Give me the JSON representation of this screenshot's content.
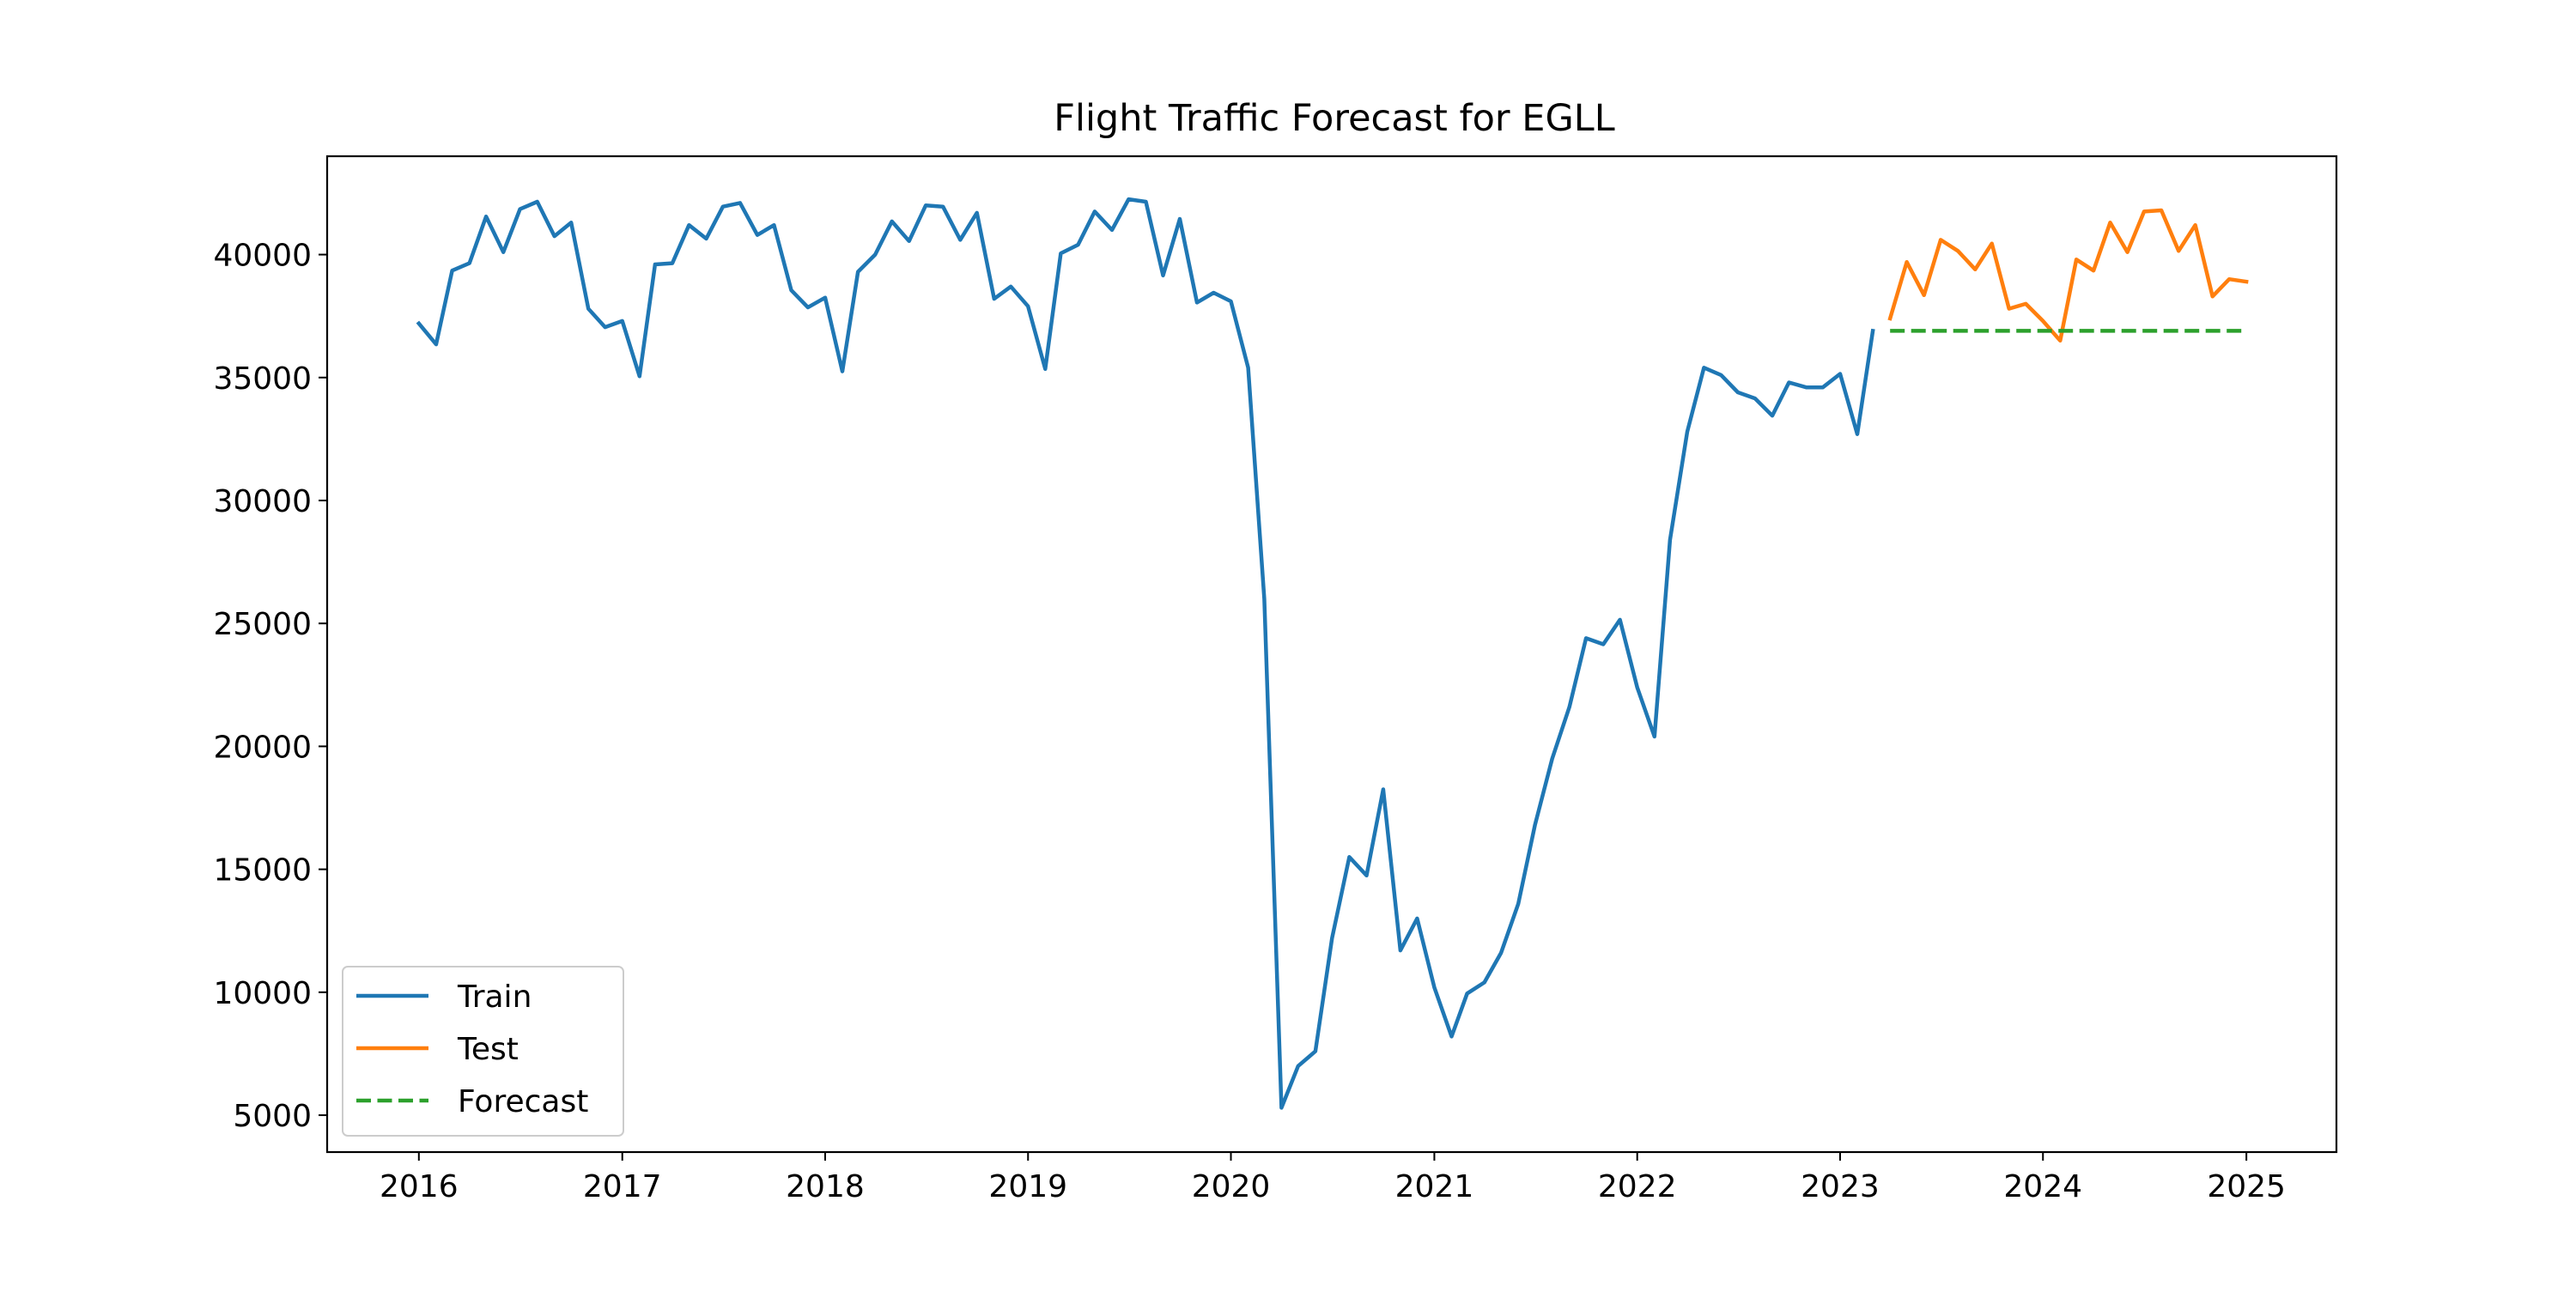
{
  "chart_data": {
    "type": "line",
    "title": "Flight Traffic Forecast for EGLL",
    "xlabel": "",
    "ylabel": "",
    "x_axis": {
      "type": "date",
      "range": [
        "2015-07-20",
        "2025-06-12"
      ],
      "ticks": [
        "2016",
        "2017",
        "2018",
        "2019",
        "2020",
        "2021",
        "2022",
        "2023",
        "2024",
        "2025"
      ]
    },
    "y_axis": {
      "range": [
        3500,
        44000
      ],
      "ticks": [
        "5000",
        "10000",
        "15000",
        "20000",
        "25000",
        "30000",
        "35000",
        "40000"
      ]
    },
    "grid": false,
    "legend": {
      "position": "lower-left",
      "entries": [
        "Train",
        "Test",
        "Forecast"
      ]
    },
    "series": [
      {
        "name": "Train",
        "color": "#1f77b4",
        "style": "solid",
        "start": "2016-01",
        "values": [
          37200,
          36350,
          39350,
          39650,
          41550,
          40100,
          41850,
          42150,
          40750,
          41300,
          37800,
          37050,
          37300,
          35050,
          39600,
          39650,
          41200,
          40650,
          41950,
          42100,
          40800,
          41200,
          38550,
          37850,
          38250,
          35250,
          39300,
          40000,
          41350,
          40550,
          42000,
          41950,
          40600,
          41700,
          38200,
          38700,
          37900,
          35350,
          40050,
          40400,
          41750,
          41000,
          42250,
          42150,
          39150,
          41450,
          38050,
          38450,
          38100,
          35400,
          26000,
          5300,
          7000,
          7600,
          12200,
          15500,
          14750,
          18250,
          11700,
          13000,
          10200,
          8200,
          9950,
          10400,
          11600,
          13600,
          16800,
          19500,
          21600,
          24400,
          24150,
          25150,
          22400,
          20400,
          28400,
          32800,
          35400,
          35100,
          34400,
          34150,
          33450,
          34800,
          34600,
          34600,
          35150,
          32700,
          36900
        ]
      },
      {
        "name": "Test",
        "color": "#ff7f0e",
        "style": "solid",
        "start": "2023-04",
        "values": [
          37400,
          39700,
          38350,
          40600,
          40150,
          39400,
          40450,
          37800,
          38000,
          37300,
          36500,
          39800,
          39350,
          41300,
          40100,
          41750,
          41800,
          40150,
          41200,
          38300,
          39000,
          38900
        ]
      },
      {
        "name": "Forecast",
        "color": "#2ca02c",
        "style": "dashed",
        "start": "2023-04",
        "values": [
          36900,
          36900,
          36900,
          36900,
          36900,
          36900,
          36900,
          36900,
          36900,
          36900,
          36900,
          36900,
          36900,
          36900,
          36900,
          36900,
          36900,
          36900,
          36900,
          36900,
          36900,
          36900
        ]
      }
    ]
  }
}
